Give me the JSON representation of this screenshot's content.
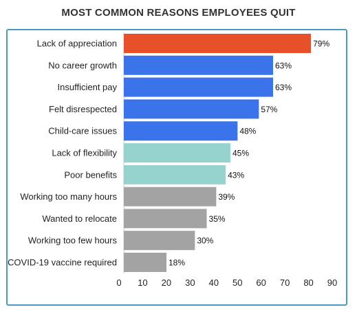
{
  "title": "MOST COMMON REASONS EMPLOYEES QUIT",
  "chart_data": {
    "type": "bar",
    "orientation": "horizontal",
    "title": "MOST COMMON REASONS EMPLOYEES QUIT",
    "xlabel": "",
    "ylabel": "",
    "categories": [
      "Lack of appreciation",
      "No career growth",
      "Insufficient pay",
      "Felt disrespected",
      "Child-care issues",
      "Lack of flexibility",
      "Poor benefits",
      "Working too many hours",
      "Wanted to relocate",
      "Working too few hours",
      "COVID-19 vaccine required"
    ],
    "values": [
      79,
      63,
      63,
      57,
      48,
      45,
      43,
      39,
      35,
      30,
      18
    ],
    "value_labels": [
      "79%",
      "63%",
      "63%",
      "57%",
      "48%",
      "45%",
      "43%",
      "39%",
      "35%",
      "30%",
      "18%"
    ],
    "bar_colors": [
      "#e8502a",
      "#3b74ea",
      "#3b74ea",
      "#3b74ea",
      "#3b74ea",
      "#96d3cf",
      "#96d3cf",
      "#a3a3a3",
      "#a3a3a3",
      "#a3a3a3",
      "#a3a3a3"
    ],
    "xlim": [
      0,
      90
    ],
    "xticks": [
      "0",
      "10",
      "20",
      "30",
      "40",
      "50",
      "60",
      "70",
      "80",
      "90"
    ],
    "grid": false,
    "legend": "none"
  },
  "colors": {
    "title": "#333333",
    "panel_border": "#4a9bbf",
    "axis_line": "#cccccc"
  }
}
